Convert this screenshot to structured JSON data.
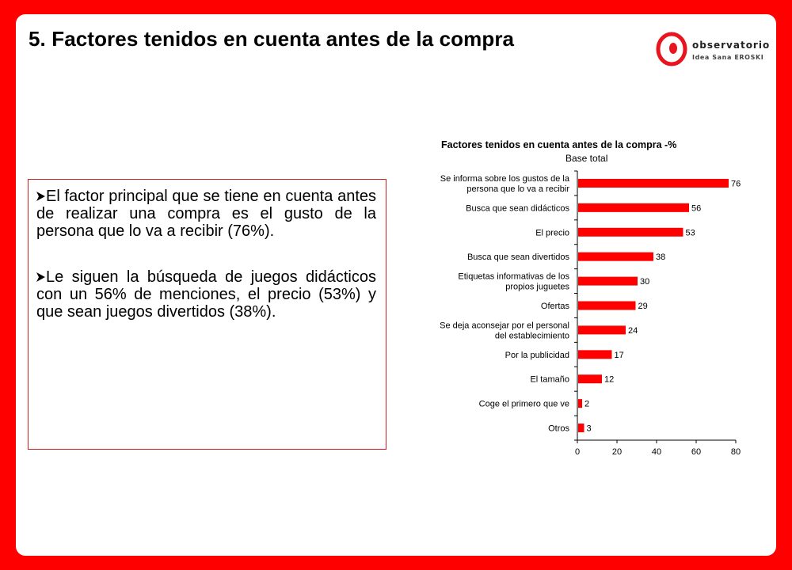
{
  "slide": {
    "title": "5. Factores tenidos en cuenta antes de la compra"
  },
  "logo": {
    "name": "observatorio",
    "sub": "Idea Sana EROSKI"
  },
  "text": {
    "bullets": [
      "El factor principal que se tiene en cuenta antes de realizar una compra es el gusto de la persona que lo va a recibir (76%).",
      "Le siguen la búsqueda de juegos didácticos con un 56% de menciones, el precio (53%) y que sean juegos divertidos (38%)."
    ]
  },
  "colors": {
    "frame": "#ff0000",
    "bar": "#ff0000"
  },
  "chart_data": {
    "type": "bar",
    "orientation": "horizontal",
    "title": "Factores tenidos en cuenta antes de la compra -%",
    "subtitle": "Base total",
    "categories": [
      [
        "Se informa sobre los gustos de la",
        "persona que lo va a recibir"
      ],
      [
        "Busca que sean didácticos"
      ],
      [
        "El precio"
      ],
      [
        "Busca que sean divertidos"
      ],
      [
        "Etiquetas informativas de los",
        "propios juguetes"
      ],
      [
        "Ofertas"
      ],
      [
        "Se deja aconsejar por el personal",
        "del establecimiento"
      ],
      [
        "Por la publicidad"
      ],
      [
        "El tamaño"
      ],
      [
        "Coge el primero que ve"
      ],
      [
        "Otros"
      ]
    ],
    "values": [
      76,
      56,
      53,
      38,
      30,
      29,
      24,
      17,
      12,
      2,
      3
    ],
    "xlim": [
      0,
      80
    ],
    "xticks": [
      0,
      20,
      40,
      60,
      80
    ],
    "grid": false,
    "legend": "none"
  }
}
